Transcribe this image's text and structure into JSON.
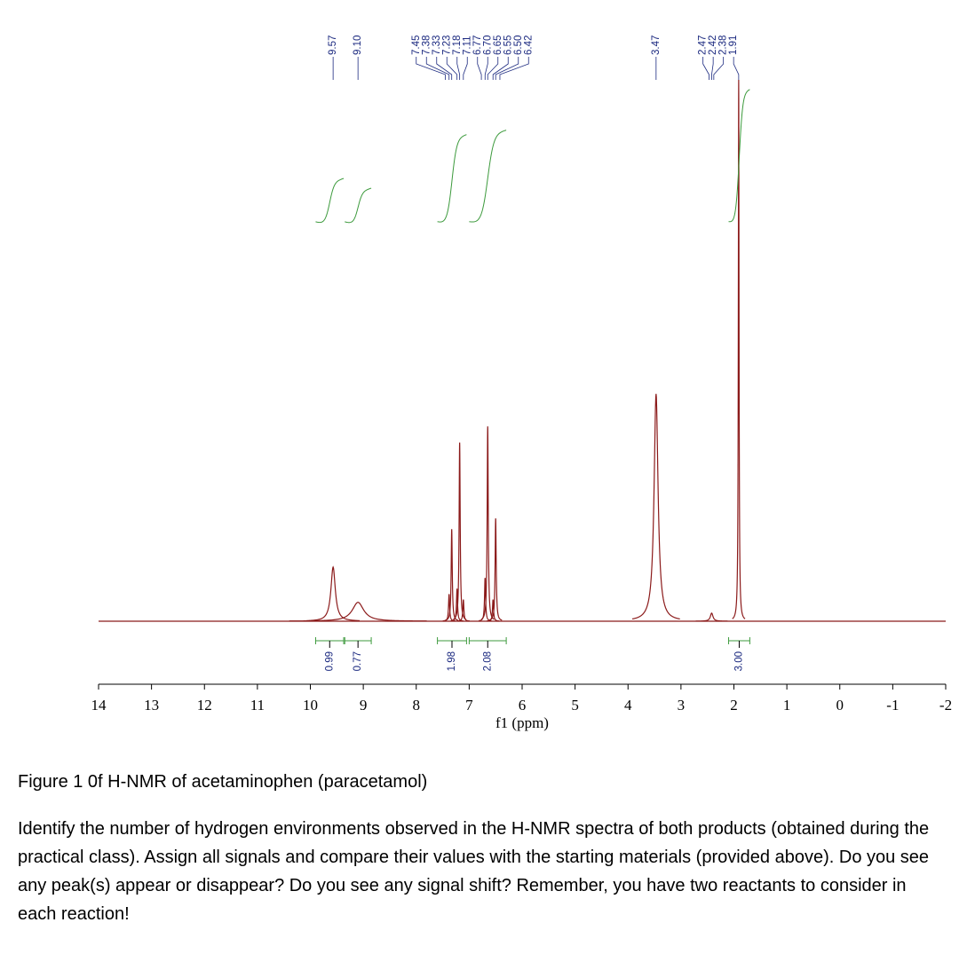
{
  "chart_data": {
    "type": "nmr",
    "xlabel": "f1 (ppm)",
    "xlim": [
      14,
      -2
    ],
    "xticks": [
      14,
      13,
      12,
      11,
      10,
      9,
      8,
      7,
      6,
      5,
      4,
      3,
      2,
      1,
      0,
      -1,
      -2
    ],
    "color": "#8b1a1a",
    "integral_color": "#3c9a3c",
    "label_color": "#1c2a80",
    "peaks": [
      {
        "ppm": 9.57,
        "height": 10,
        "width": 0.05
      },
      {
        "ppm": 9.1,
        "height": 3.5,
        "width": 0.13
      },
      {
        "ppm": 7.38,
        "height": 5,
        "width": 0.012
      },
      {
        "ppm": 7.33,
        "height": 17,
        "width": 0.012
      },
      {
        "ppm": 7.23,
        "height": 6,
        "width": 0.012
      },
      {
        "ppm": 7.18,
        "height": 33,
        "width": 0.012
      },
      {
        "ppm": 7.11,
        "height": 4,
        "width": 0.012
      },
      {
        "ppm": 6.7,
        "height": 8,
        "width": 0.012
      },
      {
        "ppm": 6.65,
        "height": 36,
        "width": 0.012
      },
      {
        "ppm": 6.55,
        "height": 4,
        "width": 0.012
      },
      {
        "ppm": 6.5,
        "height": 19,
        "width": 0.012
      },
      {
        "ppm": 3.47,
        "height": 42,
        "width": 0.045
      },
      {
        "ppm": 2.42,
        "height": 1.5,
        "width": 0.03
      },
      {
        "ppm": 1.91,
        "height": 100,
        "width": 0.008
      }
    ],
    "peak_labels": [
      9.57,
      {
        "value": 9.1,
        "label": "9.10"
      },
      7.45,
      7.38,
      7.33,
      7.23,
      7.18,
      7.11,
      6.77,
      {
        "value": 6.7,
        "label": "6.70"
      },
      6.65,
      6.55,
      {
        "value": 6.5,
        "label": "6.50"
      },
      6.42,
      3.47,
      2.47,
      2.42,
      2.38,
      1.91
    ],
    "integrals": {
      "ranges": [
        [
          9.9,
          9.37
        ],
        [
          9.35,
          8.85
        ],
        [
          7.6,
          7.05
        ],
        [
          7.0,
          6.3
        ],
        [
          2.1,
          1.7
        ]
      ],
      "values": [
        0.99,
        0.77,
        1.98,
        2.08,
        3
      ],
      "value_labels": [
        "0.99",
        "0.77",
        "1.98",
        "2.08",
        "3.00"
      ]
    }
  },
  "caption": "Figure 1 0f H-NMR of acetaminophen (paracetamol)",
  "question": "Identify the number of hydrogen environments observed in the H-NMR spectra of both products (obtained during the practical class). Assign all signals and compare their values with the starting materials (provided above). Do you see any peak(s) appear or disappear? Do you see any signal shift? Remember, you have two reactants to consider in each reaction!"
}
